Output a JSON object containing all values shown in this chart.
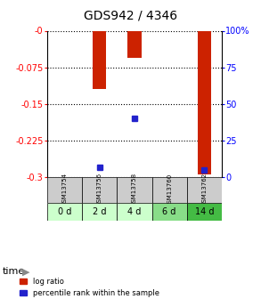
{
  "title": "GDS942 / 4346",
  "samples": [
    "GSM13754",
    "GSM13756",
    "GSM13758",
    "GSM13760",
    "GSM13762"
  ],
  "time_labels": [
    "0 d",
    "2 d",
    "4 d",
    "6 d",
    "14 d"
  ],
  "log_ratios": [
    0.0,
    -0.12,
    -0.055,
    0.0,
    -0.295
  ],
  "percentile_ranks": [
    null,
    7.0,
    40.0,
    null,
    5.0
  ],
  "ylim": [
    -0.3,
    0.0
  ],
  "yticks": [
    0.0,
    -0.075,
    -0.15,
    -0.225,
    -0.3
  ],
  "ytick_labels": [
    "-0",
    "-0.075",
    "-0.15",
    "-0.225",
    "-0.3"
  ],
  "right_yticks": [
    0,
    25,
    50,
    75,
    100
  ],
  "right_ytick_labels": [
    "0",
    "25",
    "50",
    "75",
    "100%"
  ],
  "bar_color": "#cc2200",
  "marker_color": "#2222cc",
  "bg_color": "#ffffff",
  "plot_bg": "#ffffff",
  "time_row_colors": [
    "#ccffcc",
    "#ccffcc",
    "#ccffcc",
    "#88dd88",
    "#44bb44"
  ],
  "gsm_row_color": "#cccccc",
  "bar_width": 0.4,
  "legend_items": [
    "log ratio",
    "percentile rank within the sample"
  ]
}
